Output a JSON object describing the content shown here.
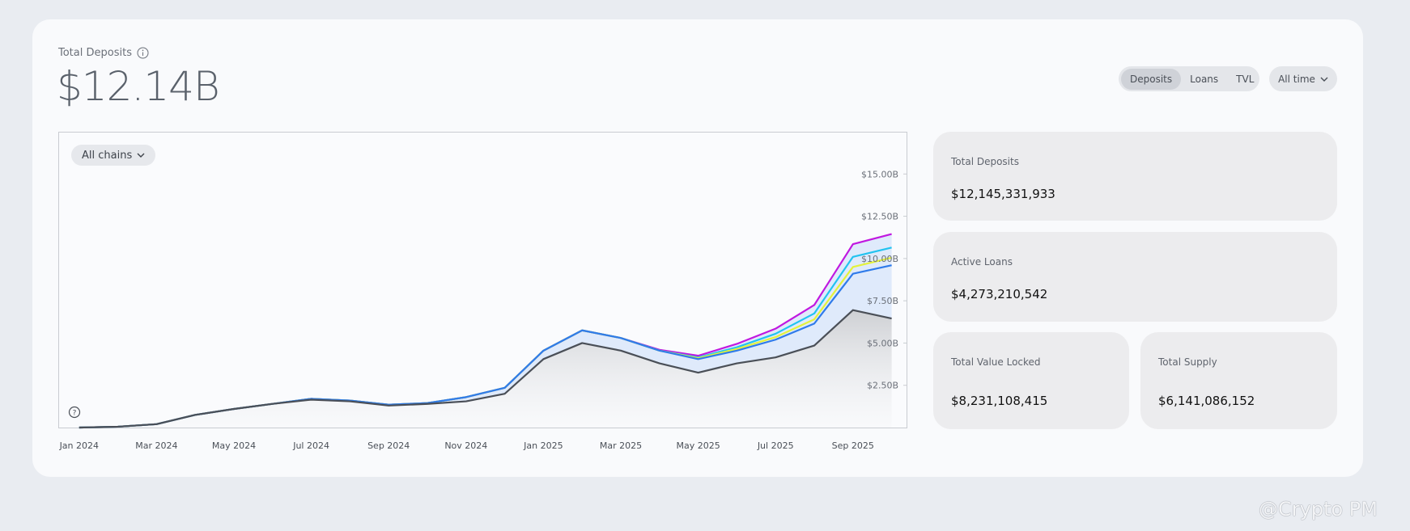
{
  "header": {
    "title": "Total Deposits",
    "value": "$12.14B"
  },
  "tabs": [
    "Deposits",
    "Loans",
    "TVL"
  ],
  "range": "All time",
  "chain_filter": "All chains",
  "stats": [
    {
      "label": "Total Deposits",
      "value": "$12,145,331,933"
    },
    {
      "label": "Active Loans",
      "value": "$4,273,210,542"
    },
    {
      "label": "Total Value Locked",
      "value": "$8,231,108,415"
    },
    {
      "label": "Total Supply",
      "value": "$6,141,086,152"
    }
  ],
  "watermark": "@Crypto PM",
  "chart_data": {
    "type": "area",
    "stacked": true,
    "categories": [
      "Jan 2024",
      null,
      "Mar 2024",
      null,
      "May 2024",
      null,
      "Jul 2024",
      null,
      "Sep 2024",
      null,
      "Nov 2024",
      null,
      "Jan 2025",
      null,
      "Mar 2025",
      null,
      "May 2025",
      null,
      "Jul 2025",
      null,
      "Sep 2025",
      null
    ],
    "series": [
      {
        "color": "#4a4f57",
        "values": [
          0,
          0.05,
          0.2,
          0.75,
          1.1,
          1.4,
          1.65,
          1.55,
          1.3,
          1.4,
          1.55,
          2.0,
          4.05,
          5.0,
          4.55,
          3.8,
          3.25,
          3.8,
          4.15,
          4.85,
          6.95,
          6.45
        ]
      },
      {
        "color": "#2f7bea",
        "values": [
          0,
          0,
          0,
          0,
          0,
          0,
          0.05,
          0.05,
          0.05,
          0.05,
          0.25,
          0.35,
          0.5,
          0.75,
          0.75,
          0.75,
          0.8,
          0.75,
          1.05,
          1.3,
          2.15,
          3.15
        ]
      },
      {
        "color": "#e4f23a",
        "values": [
          0,
          0,
          0,
          0,
          0,
          0,
          0,
          0,
          0,
          0,
          0,
          0,
          0,
          0,
          0,
          0,
          0.05,
          0.1,
          0.15,
          0.25,
          0.4,
          0.45
        ]
      },
      {
        "color": "#22c3f0",
        "values": [
          0,
          0,
          0,
          0,
          0,
          0,
          0,
          0,
          0,
          0,
          0,
          0,
          0,
          0,
          0,
          0,
          0.05,
          0.1,
          0.2,
          0.35,
          0.6,
          0.6
        ]
      },
      {
        "color": "#c018e0",
        "values": [
          0,
          0,
          0,
          0,
          0,
          0,
          0,
          0,
          0,
          0,
          0,
          0,
          0,
          0,
          0,
          0.05,
          0.1,
          0.2,
          0.3,
          0.5,
          0.75,
          0.8
        ]
      }
    ],
    "ylim": [
      0,
      17.5
    ],
    "yticks": [
      {
        "value": 2.5,
        "label": "$2.50B"
      },
      {
        "value": 5,
        "label": "$5.00B"
      },
      {
        "value": 7.5,
        "label": "$7.50B"
      },
      {
        "value": 10,
        "label": "$10.00B"
      },
      {
        "value": 12.5,
        "label": "$12.50B"
      },
      {
        "value": 15,
        "label": "$15.00B"
      }
    ],
    "grid": false
  }
}
